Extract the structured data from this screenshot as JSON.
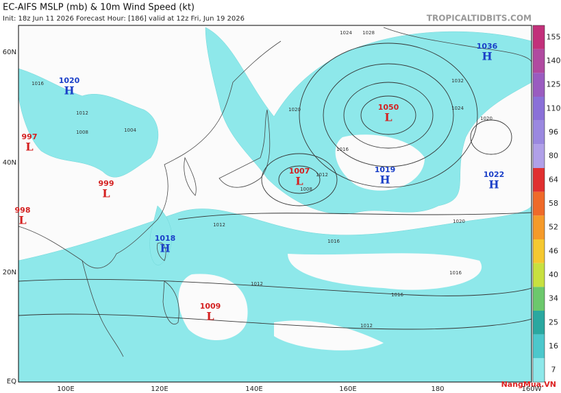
{
  "header": {
    "title": "EC-AIFS MSLP (mb) & 10m Wind Speed (kt)",
    "subtitle": "Init: 18z Jun 11 2026   Forecast Hour: [186]   valid at 12z Fri, Jun 19 2026",
    "site": "TROPICALTIDBITS.COM"
  },
  "lat_labels": [
    "60N",
    "40N",
    "20N",
    "EQ"
  ],
  "lon_labels": [
    "100E",
    "120E",
    "140E",
    "160E",
    "180",
    "160W"
  ],
  "pressure_centers": [
    {
      "value": "1020",
      "symbol": "H"
    },
    {
      "value": "997",
      "symbol": "L"
    },
    {
      "value": "999",
      "symbol": "L"
    },
    {
      "value": "998",
      "symbol": "L"
    },
    {
      "value": "1018",
      "symbol": "H"
    },
    {
      "value": "1009",
      "symbol": "L"
    },
    {
      "value": "1007",
      "symbol": "L"
    },
    {
      "value": "1050",
      "symbol": "L"
    },
    {
      "value": "1019",
      "symbol": "H"
    },
    {
      "value": "1036",
      "symbol": "H"
    },
    {
      "value": "1022",
      "symbol": "H"
    }
  ],
  "isobar_labels": [
    "1016",
    "1012",
    "1008",
    "1004",
    "1024",
    "1028",
    "1020",
    "1016",
    "1012",
    "1008",
    "1016",
    "1012",
    "1016",
    "1012",
    "1032",
    "1024",
    "1020",
    "1020",
    "1016",
    "1012"
  ],
  "colorbar": {
    "ticks": [
      "155",
      "140",
      "125",
      "110",
      "96",
      "80",
      "64",
      "58",
      "52",
      "46",
      "40",
      "34",
      "25",
      "16",
      "7"
    ],
    "colors": [
      "#c2307a",
      "#b04aa0",
      "#9a5cc0",
      "#8a70d8",
      "#9a88e0",
      "#b0a0e8",
      "#e03030",
      "#ef6a2a",
      "#f59a2a",
      "#f5c830",
      "#c8e040",
      "#6cc86c",
      "#2aa8a0",
      "#4cc8cc",
      "#8ee8ea"
    ]
  },
  "watermark": "NangMua.VN"
}
